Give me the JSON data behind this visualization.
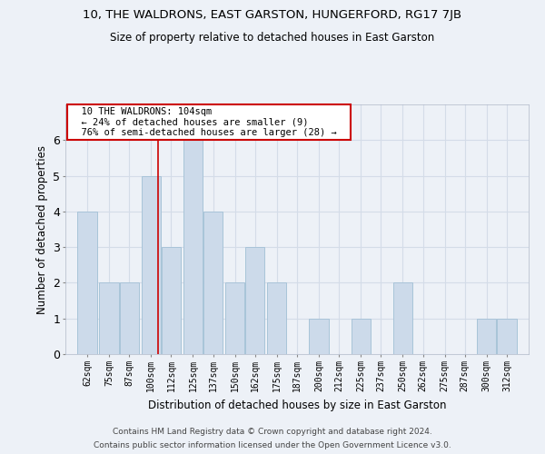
{
  "title": "10, THE WALDRONS, EAST GARSTON, HUNGERFORD, RG17 7JB",
  "subtitle": "Size of property relative to detached houses in East Garston",
  "xlabel": "Distribution of detached houses by size in East Garston",
  "ylabel": "Number of detached properties",
  "footer1": "Contains HM Land Registry data © Crown copyright and database right 2024.",
  "footer2": "Contains public sector information licensed under the Open Government Licence v3.0.",
  "annotation_line1": "10 THE WALDRONS: 104sqm",
  "annotation_line2": "← 24% of detached houses are smaller (9)",
  "annotation_line3": "76% of semi-detached houses are larger (28) →",
  "property_size": 104,
  "categories": [
    62,
    75,
    87,
    100,
    112,
    125,
    137,
    150,
    162,
    175,
    187,
    200,
    212,
    225,
    237,
    250,
    262,
    275,
    287,
    300,
    312
  ],
  "values": [
    4,
    2,
    2,
    5,
    3,
    6,
    4,
    2,
    3,
    2,
    0,
    1,
    0,
    1,
    0,
    2,
    0,
    0,
    0,
    1,
    1
  ],
  "bar_color": "#ccdaea",
  "bar_edge_color": "#a8c4d8",
  "red_line_color": "#cc0000",
  "grid_color": "#d4dce8",
  "background_color": "#edf1f7",
  "plot_bg_color": "#edf1f7",
  "annotation_box_color": "#ffffff",
  "annotation_box_edge": "#cc0000",
  "ylim": [
    0,
    7
  ],
  "yticks": [
    0,
    1,
    2,
    3,
    4,
    5,
    6
  ],
  "title_fontsize": 9.5,
  "subtitle_fontsize": 8.5,
  "ylabel_fontsize": 8.5,
  "xlabel_fontsize": 8.5,
  "tick_fontsize": 7,
  "annotation_fontsize": 7.5,
  "footer_fontsize": 6.5
}
